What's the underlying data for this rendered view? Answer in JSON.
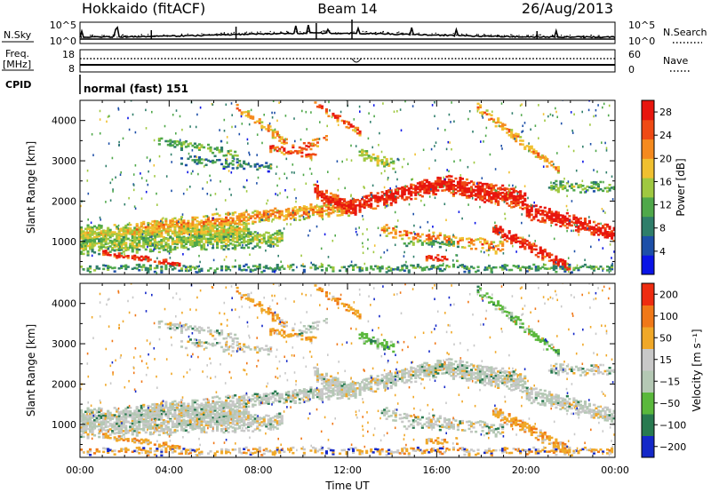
{
  "header": {
    "station": "Hokkaido (fitACF)",
    "beam": "Beam 14",
    "date": "26/Aug/2013"
  },
  "noise_panel": {
    "left_label": "N.Sky",
    "right_label": "N.Search",
    "left_ticks": [
      "10^5",
      "10^0"
    ],
    "right_ticks": [
      "10^5",
      "10^0"
    ]
  },
  "freq_panel": {
    "left_label_1": "Freq.",
    "left_label_2": "[MHz]",
    "right_label": "Nave",
    "left_ticks": [
      "18",
      "8"
    ],
    "right_ticks": [
      "60",
      "0"
    ]
  },
  "cpid_panel": {
    "label": "CPID",
    "value": "normal (fast) 151"
  },
  "colors": {
    "power_scale": [
      "#0a14e6",
      "#1d4fa8",
      "#2f7e6a",
      "#4fa84a",
      "#9fc840",
      "#f0c030",
      "#f58a1e",
      "#ef4a14",
      "#e8160e"
    ],
    "velocity_scale": [
      "#1428c8",
      "#287a50",
      "#5ab83c",
      "#b4c8b4",
      "#c8c8c8",
      "#f0a828",
      "#f07818",
      "#ee2c10"
    ]
  },
  "chart_data": [
    {
      "type": "heatmap",
      "name": "power",
      "xlabel": "Time UT",
      "ylabel": "Slant Range [km]",
      "xlim": [
        0,
        24
      ],
      "ylim": [
        180,
        4500
      ],
      "x_ticks": [
        "00:00",
        "04:00",
        "08:00",
        "12:00",
        "16:00",
        "20:00",
        "00:00"
      ],
      "y_ticks": [
        1000,
        2000,
        3000,
        4000
      ],
      "colorbar_label": "Power [dB]",
      "colorbar_ticks": [
        "4",
        "8",
        "12",
        "16",
        "20",
        "24",
        "28"
      ],
      "colorbar_range": [
        0,
        30
      ]
    },
    {
      "type": "heatmap",
      "name": "velocity",
      "xlabel": "Time UT",
      "ylabel": "Slant Range [km]",
      "xlim": [
        0,
        24
      ],
      "ylim": [
        180,
        4500
      ],
      "x_ticks": [
        "00:00",
        "04:00",
        "08:00",
        "12:00",
        "16:00",
        "20:00",
        "00:00"
      ],
      "y_ticks": [
        1000,
        2000,
        3000,
        4000
      ],
      "colorbar_label": "Velocity [m s⁻¹]",
      "colorbar_ticks": [
        "200",
        "100",
        "50",
        "15",
        "−15",
        "−50",
        "−100",
        "−200"
      ]
    }
  ]
}
